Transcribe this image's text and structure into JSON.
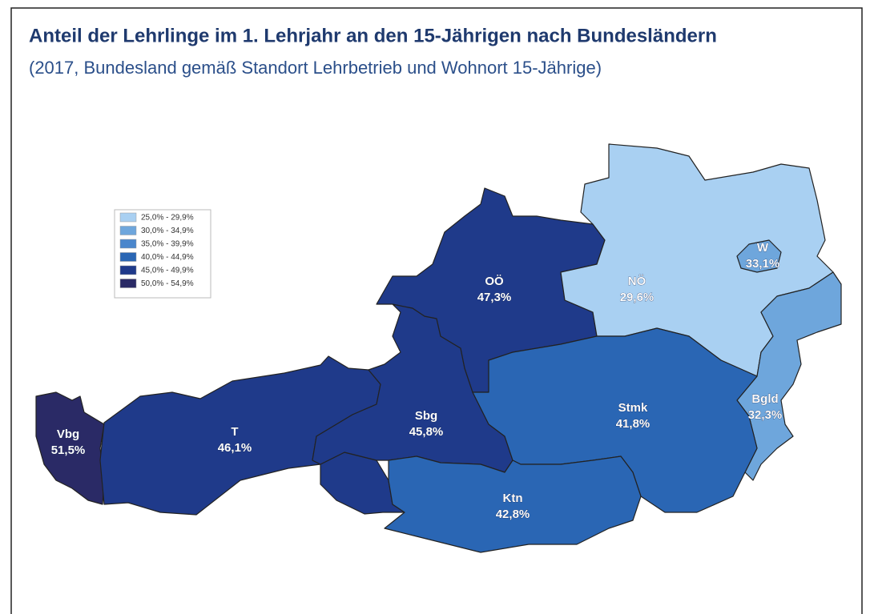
{
  "title": "Anteil der Lehrlinge im 1. Lehrjahr an den 15-Jährigen nach Bundesländern",
  "subtitle": "(2017, Bundesland gemäß Standort Lehrbetrieb und Wohnort 15-Jährige)",
  "legend": [
    {
      "label": "25,0% - 29,9%",
      "min": 25.0,
      "max": 29.9,
      "color": "#a9d0f2"
    },
    {
      "label": "30,0% - 34,9%",
      "min": 30.0,
      "max": 34.9,
      "color": "#6ea6dc"
    },
    {
      "label": "35,0% - 39,9%",
      "min": 35.0,
      "max": 39.9,
      "color": "#4a86cc"
    },
    {
      "label": "40,0% - 44,9%",
      "min": 40.0,
      "max": 44.9,
      "color": "#2a66b4"
    },
    {
      "label": "45,0% - 49,9%",
      "min": 45.0,
      "max": 49.9,
      "color": "#1f3a8a"
    },
    {
      "label": "50,0% - 54,9%",
      "min": 50.0,
      "max": 54.9,
      "color": "#2a2a66"
    }
  ],
  "regions": [
    {
      "name": "Vbg",
      "value": 51.5,
      "value_label": "51,5%"
    },
    {
      "name": "T",
      "value": 46.1,
      "value_label": "46,1%"
    },
    {
      "name": "Sbg",
      "value": 45.8,
      "value_label": "45,8%"
    },
    {
      "name": "OÖ",
      "value": 47.3,
      "value_label": "47,3%"
    },
    {
      "name": "NÖ",
      "value": 29.6,
      "value_label": "29,6%"
    },
    {
      "name": "W",
      "value": 33.1,
      "value_label": "33,1%"
    },
    {
      "name": "Bgld",
      "value": 32.3,
      "value_label": "32,3%"
    },
    {
      "name": "Stmk",
      "value": 41.8,
      "value_label": "41,8%"
    },
    {
      "name": "Ktn",
      "value": 42.8,
      "value_label": "42,8%"
    }
  ]
}
